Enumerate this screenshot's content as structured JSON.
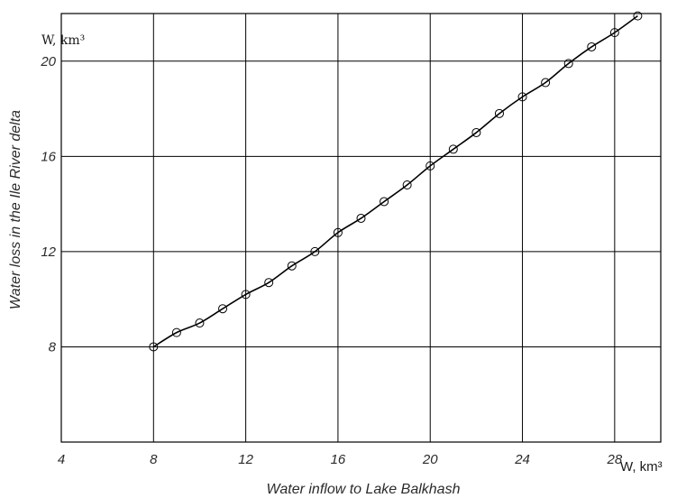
{
  "chart_data": {
    "type": "line",
    "xlabel": "Water inflow to Lake Balkhash",
    "ylabel": "Water loss in the Ile River delta",
    "x_unit_label": "W, km³",
    "y_unit_label": "W, km³",
    "xlim": [
      4,
      30
    ],
    "ylim": [
      4,
      22
    ],
    "x_ticks": [
      4,
      8,
      12,
      16,
      20,
      24,
      28
    ],
    "y_ticks": [
      8,
      12,
      16,
      20
    ],
    "grid": true,
    "marker": "open-circle",
    "series": [
      {
        "x": [
          8,
          9,
          10,
          11,
          12,
          13,
          14,
          15,
          16,
          17,
          18,
          19,
          20,
          21,
          22,
          23,
          24,
          25,
          26,
          27,
          28,
          29
        ],
        "y": [
          8.0,
          8.6,
          9.0,
          9.6,
          10.2,
          10.7,
          11.4,
          12.0,
          12.8,
          13.4,
          14.1,
          14.8,
          15.6,
          16.3,
          17.0,
          17.8,
          18.5,
          19.1,
          19.9,
          20.6,
          21.2,
          21.9
        ]
      }
    ]
  }
}
